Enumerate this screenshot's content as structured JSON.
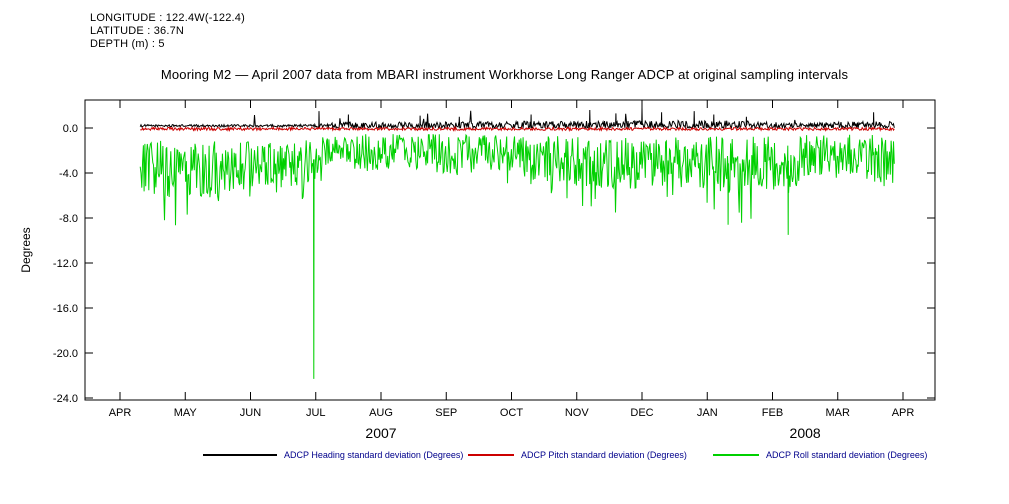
{
  "header": {
    "longitude": "LONGITUDE : 122.4W(-122.4)",
    "latitude": "LATITUDE : 36.7N",
    "depth": "DEPTH (m) : 5"
  },
  "chart_data": {
    "type": "line",
    "title": "Mooring M2 — April 2007 data from MBARI instrument Workhorse Long Ranger ADCP at original sampling intervals",
    "xlabel": "",
    "ylabel": "Degrees",
    "ylim": [
      -24.0,
      2.5
    ],
    "yticks": [
      0.0,
      -4.0,
      -8.0,
      -12.0,
      -16.0,
      -20.0,
      -24.0
    ],
    "xtick_labels": [
      "APR",
      "MAY",
      "JUN",
      "JUL",
      "AUG",
      "SEP",
      "OCT",
      "NOV",
      "DEC",
      "JAN",
      "FEB",
      "MAR",
      "APR"
    ],
    "x_axis_years": [
      {
        "label": "2007",
        "month": 4.0
      },
      {
        "label": "2008",
        "month": 10.5
      }
    ],
    "x_range_months": [
      -0.54,
      12.5
    ],
    "data_span_months": [
      0.31,
      11.87
    ],
    "grid": false,
    "legend_position": "bottom",
    "series": [
      {
        "name": "ADCP Heading standard deviation (Degrees)",
        "color": "#000000",
        "envelope": [
          [
            0.31,
            0.2,
            0.1
          ],
          [
            3.0,
            0.2,
            0.12
          ],
          [
            3.3,
            0.25,
            0.3
          ],
          [
            6.0,
            0.25,
            0.35
          ],
          [
            9.5,
            0.28,
            0.4
          ],
          [
            10.2,
            0.22,
            0.25
          ],
          [
            11.87,
            0.25,
            0.35
          ]
        ],
        "spike_prob": 0.012,
        "spike_base": 0.4,
        "spike_extra": 0.9,
        "clamp": [
          0.02,
          2.2
        ],
        "spikes": [
          [
            3.05,
            1.5
          ],
          [
            3.5,
            1.2
          ],
          [
            4.6,
            1.1
          ],
          [
            5.2,
            1.0
          ],
          [
            6.3,
            1.2
          ],
          [
            7.2,
            1.6
          ],
          [
            7.6,
            1.3
          ],
          [
            8.0,
            1.8
          ],
          [
            8.3,
            1.4
          ],
          [
            8.8,
            1.5
          ],
          [
            9.1,
            1.2
          ],
          [
            9.6,
            1.0
          ],
          [
            11.55,
            1.4
          ]
        ]
      },
      {
        "name": "ADCP Pitch standard deviation (Degrees)",
        "color": "#cc0000",
        "envelope": [
          [
            0.31,
            -0.08,
            0.13
          ],
          [
            11.87,
            -0.08,
            0.13
          ]
        ],
        "clamp": [
          -0.38,
          0.12
        ],
        "spikes": []
      },
      {
        "name": "ADCP Roll standard deviation (Degrees)",
        "color": "#00d000",
        "envelope": [
          [
            0.31,
            -3.5,
            2.5
          ],
          [
            1.0,
            -3.8,
            2.6
          ],
          [
            2.0,
            -3.5,
            2.3
          ],
          [
            2.9,
            -3.0,
            2.0
          ],
          [
            3.3,
            -1.8,
            1.2
          ],
          [
            3.7,
            -2.2,
            1.7
          ],
          [
            4.3,
            -2.0,
            1.5
          ],
          [
            5.0,
            -2.4,
            1.9
          ],
          [
            5.6,
            -2.2,
            1.7
          ],
          [
            6.2,
            -2.6,
            2.0
          ],
          [
            7.0,
            -3.0,
            2.2
          ],
          [
            7.6,
            -3.2,
            2.4
          ],
          [
            8.2,
            -3.0,
            2.2
          ],
          [
            8.8,
            -3.2,
            2.5
          ],
          [
            9.4,
            -3.2,
            2.7
          ],
          [
            10.0,
            -3.0,
            2.5
          ],
          [
            10.6,
            -2.8,
            2.2
          ],
          [
            11.1,
            -2.5,
            2.0
          ],
          [
            11.87,
            -3.0,
            2.4
          ]
        ],
        "dip_prob": 0.03,
        "dip_extra": 0.9,
        "clamp": [
          -23.0,
          -0.55
        ],
        "spikes": [
          [
            2.97,
            -22.3
          ],
          [
            9.32,
            -8.6
          ],
          [
            10.24,
            -9.5
          ]
        ]
      }
    ]
  }
}
